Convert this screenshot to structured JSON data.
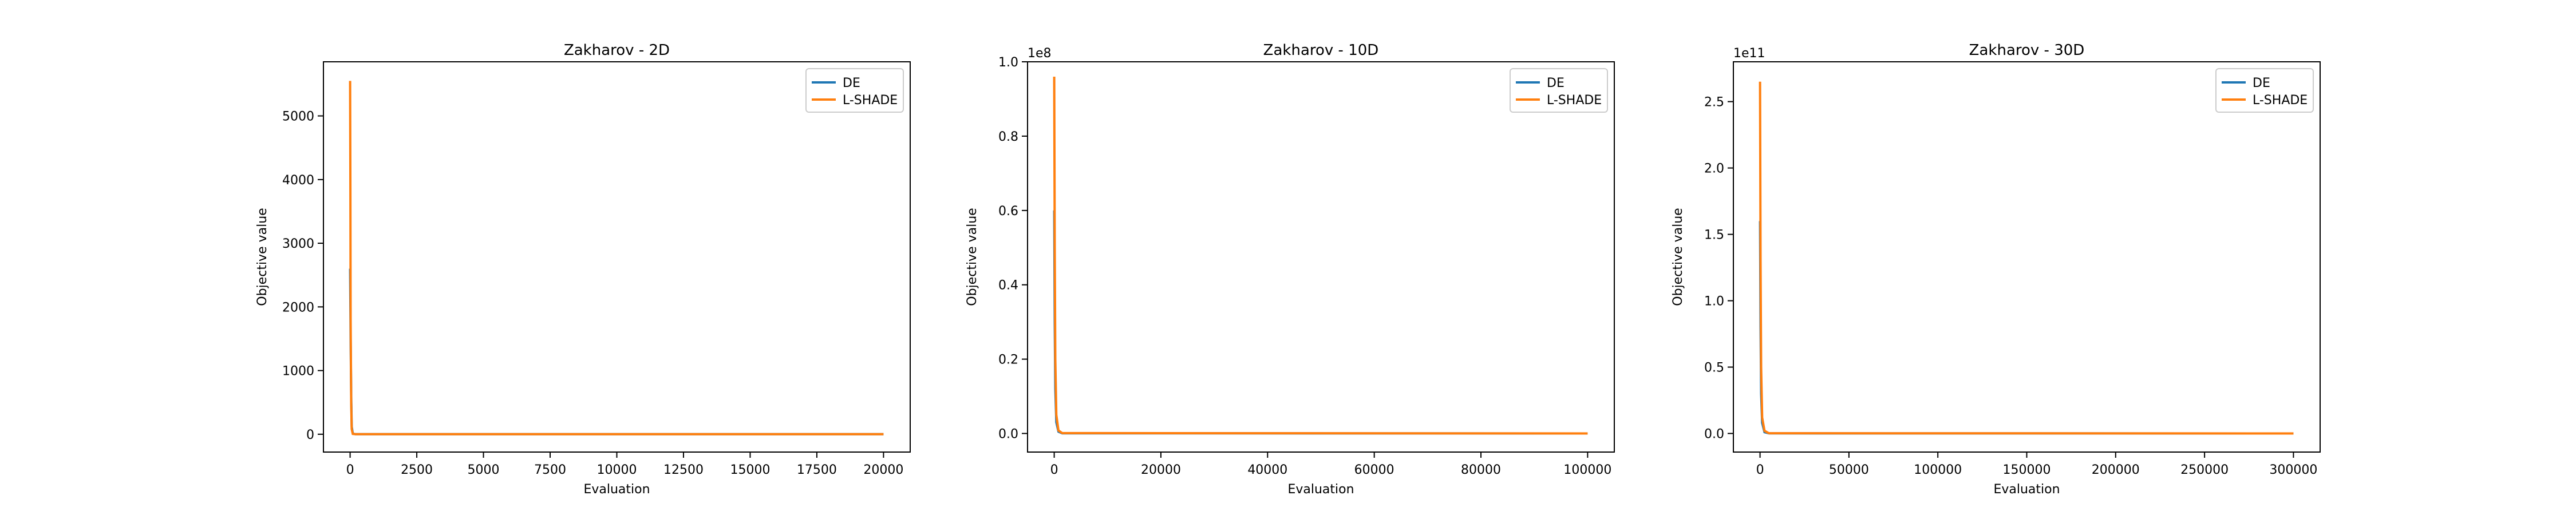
{
  "chart_data": [
    {
      "type": "line",
      "title": "Zakharov - 2D",
      "xlabel": "Evaluation",
      "ylabel": "Objective value",
      "xlim": [
        -1000,
        21000
      ],
      "ylim": [
        -280,
        5850
      ],
      "x_ticks": [
        0,
        2500,
        5000,
        7500,
        10000,
        12500,
        15000,
        17500,
        20000
      ],
      "x_tick_labels": [
        "0",
        "2500",
        "5000",
        "7500",
        "10000",
        "12500",
        "15000",
        "17500",
        "20000"
      ],
      "y_ticks": [
        0,
        1000,
        2000,
        3000,
        4000,
        5000
      ],
      "y_tick_labels": [
        "0",
        "1000",
        "2000",
        "3000",
        "4000",
        "5000"
      ],
      "offset_label": "",
      "legend": {
        "position": "top-right",
        "entries": [
          "DE",
          "L-SHADE"
        ]
      },
      "grid": false,
      "series": [
        {
          "name": "DE",
          "color": "#1f77b4",
          "x": [
            0,
            20,
            40,
            60,
            100,
            200,
            20000
          ],
          "y": [
            2600,
            1500,
            600,
            120,
            10,
            0.5,
            0
          ]
        },
        {
          "name": "L-SHADE",
          "color": "#ff7f0e",
          "x": [
            0,
            10,
            20,
            40,
            60,
            100,
            200,
            20000
          ],
          "y": [
            5550,
            3800,
            1800,
            500,
            80,
            5,
            0.2,
            0
          ]
        }
      ]
    },
    {
      "type": "line",
      "title": "Zakharov - 10D",
      "xlabel": "Evaluation",
      "ylabel": "Objective value",
      "xlim": [
        -5000,
        105000
      ],
      "ylim": [
        -0.05,
        1.0
      ],
      "x_ticks": [
        0,
        20000,
        40000,
        60000,
        80000,
        100000
      ],
      "x_tick_labels": [
        "0",
        "20000",
        "40000",
        "60000",
        "80000",
        "100000"
      ],
      "y_ticks": [
        0,
        0.2,
        0.4,
        0.6,
        0.8,
        1.0
      ],
      "y_tick_labels": [
        "0.0",
        "0.2",
        "0.4",
        "0.6",
        "0.8",
        "1.0"
      ],
      "offset_label": "1e8",
      "legend": {
        "position": "top-right",
        "entries": [
          "DE",
          "L-SHADE"
        ]
      },
      "grid": false,
      "series": [
        {
          "name": "DE",
          "color": "#1f77b4",
          "x": [
            0,
            100,
            200,
            400,
            800,
            1500,
            100000
          ],
          "y": [
            0.6,
            0.3,
            0.12,
            0.03,
            0.005,
            0.0005,
            0
          ]
        },
        {
          "name": "L-SHADE",
          "color": "#ff7f0e",
          "x": [
            0,
            100,
            200,
            400,
            800,
            1500,
            100000
          ],
          "y": [
            0.96,
            0.5,
            0.2,
            0.05,
            0.008,
            0.001,
            0
          ]
        }
      ]
    },
    {
      "type": "line",
      "title": "Zakharov - 30D",
      "xlabel": "Evaluation",
      "ylabel": "Objective value",
      "xlim": [
        -15000,
        315000
      ],
      "ylim": [
        -0.14,
        2.8
      ],
      "x_ticks": [
        0,
        50000,
        100000,
        150000,
        200000,
        250000,
        300000
      ],
      "x_tick_labels": [
        "0",
        "50000",
        "100000",
        "150000",
        "200000",
        "250000",
        "300000"
      ],
      "y_ticks": [
        0,
        0.5,
        1.0,
        1.5,
        2.0,
        2.5
      ],
      "y_tick_labels": [
        "0.0",
        "0.5",
        "1.0",
        "1.5",
        "2.0",
        "2.5"
      ],
      "offset_label": "1e11",
      "legend": {
        "position": "top-right",
        "entries": [
          "DE",
          "L-SHADE"
        ]
      },
      "grid": false,
      "series": [
        {
          "name": "DE",
          "color": "#1f77b4",
          "x": [
            0,
            300,
            600,
            1200,
            2500,
            5000,
            300000
          ],
          "y": [
            1.6,
            0.8,
            0.3,
            0.08,
            0.01,
            0.001,
            0
          ]
        },
        {
          "name": "L-SHADE",
          "color": "#ff7f0e",
          "x": [
            0,
            300,
            600,
            1200,
            2500,
            5000,
            300000
          ],
          "y": [
            2.65,
            1.3,
            0.5,
            0.12,
            0.02,
            0.002,
            0
          ]
        }
      ]
    }
  ]
}
